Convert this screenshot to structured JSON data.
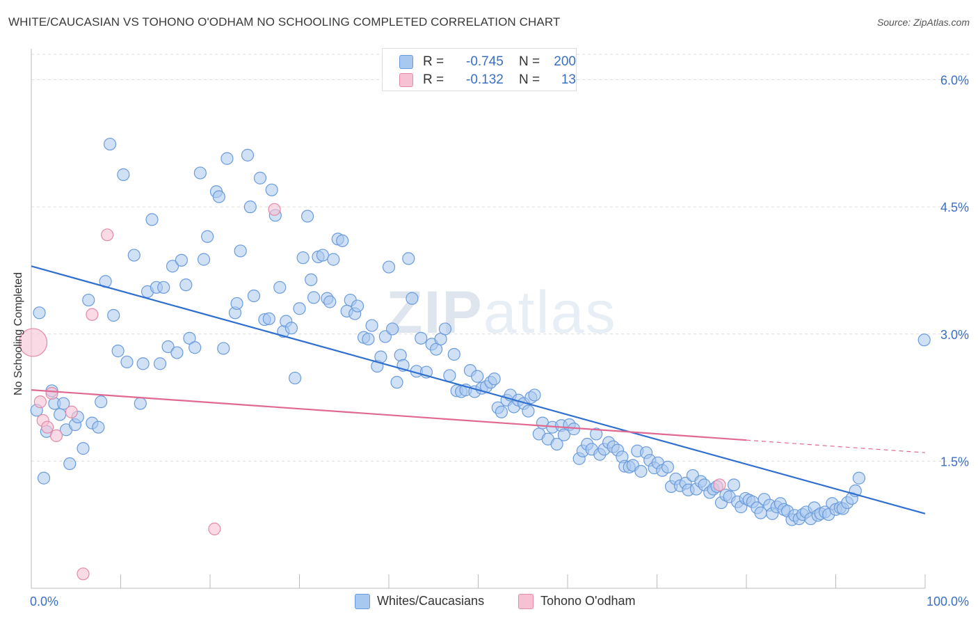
{
  "header": {
    "title": "WHITE/CAUCASIAN VS TOHONO O'ODHAM NO SCHOOLING COMPLETED CORRELATION CHART",
    "source": "Source: ZipAtlas.com"
  },
  "watermark": {
    "zip": "ZIP",
    "atlas": "atlas"
  },
  "colors": {
    "blue_fill": "#a9c8ef",
    "blue_stroke": "#6a9bdc",
    "blue_line": "#2f6fcf",
    "pink_fill": "#f6c1d2",
    "pink_stroke": "#e28aa7",
    "pink_line": "#e06891",
    "grid": "#dedede",
    "axis_text": "#3a6fc4"
  },
  "legend": {
    "rows": [
      {
        "r_label": "R =",
        "r_value": "-0.745",
        "n_label": "N =",
        "n_value": "200"
      },
      {
        "r_label": "R =",
        "r_value": "-0.132",
        "n_label": "N =",
        "n_value": "13"
      }
    ],
    "bottom": [
      "Whites/Caucasians",
      "Tohono O'odham"
    ]
  },
  "chart_data": {
    "type": "scatter",
    "ylabel": "No Schooling Completed",
    "x_tick_labels": [
      "0.0%",
      "100.0%"
    ],
    "y_tick_labels": [
      "1.5%",
      "3.0%",
      "4.5%",
      "6.0%"
    ],
    "xlim": [
      0,
      100
    ],
    "ylim": [
      0,
      6.3
    ],
    "y_ticks": [
      1.5,
      3.0,
      4.5,
      6.0
    ],
    "grid": true,
    "series": [
      {
        "name": "Whites/Caucasians",
        "color": "#a9c8ef",
        "trend": {
          "x0": 0,
          "y0": 3.8,
          "x1": 100,
          "y1": 0.88,
          "dashed_from": null
        },
        "points": [
          [
            0.6,
            2.1
          ],
          [
            0.9,
            3.25
          ],
          [
            1.4,
            1.3
          ],
          [
            1.7,
            1.85
          ],
          [
            2.3,
            2.33
          ],
          [
            2.6,
            2.18
          ],
          [
            3.2,
            2.05
          ],
          [
            3.6,
            2.18
          ],
          [
            3.9,
            1.87
          ],
          [
            4.3,
            1.47
          ],
          [
            4.9,
            1.93
          ],
          [
            5.2,
            2.02
          ],
          [
            5.8,
            1.65
          ],
          [
            6.4,
            3.4
          ],
          [
            6.8,
            1.95
          ],
          [
            7.5,
            1.9
          ],
          [
            7.8,
            2.2
          ],
          [
            8.3,
            3.62
          ],
          [
            8.8,
            5.24
          ],
          [
            9.2,
            3.22
          ],
          [
            9.7,
            2.8
          ],
          [
            10.3,
            4.88
          ],
          [
            10.7,
            2.67
          ],
          [
            11.5,
            3.93
          ],
          [
            12.2,
            2.18
          ],
          [
            12.5,
            2.65
          ],
          [
            13.0,
            3.5
          ],
          [
            13.5,
            4.35
          ],
          [
            14.0,
            3.55
          ],
          [
            14.4,
            2.65
          ],
          [
            14.8,
            3.55
          ],
          [
            15.3,
            2.85
          ],
          [
            15.8,
            3.8
          ],
          [
            16.3,
            2.78
          ],
          [
            16.8,
            3.87
          ],
          [
            17.3,
            3.58
          ],
          [
            17.7,
            2.95
          ],
          [
            18.3,
            2.84
          ],
          [
            18.9,
            4.9
          ],
          [
            19.3,
            3.88
          ],
          [
            19.7,
            4.15
          ],
          [
            20.7,
            4.68
          ],
          [
            21.0,
            4.62
          ],
          [
            21.5,
            2.83
          ],
          [
            21.9,
            5.07
          ],
          [
            22.8,
            3.25
          ],
          [
            23.0,
            3.36
          ],
          [
            23.4,
            3.98
          ],
          [
            24.2,
            5.11
          ],
          [
            24.5,
            4.5
          ],
          [
            24.9,
            3.45
          ],
          [
            25.6,
            4.84
          ],
          [
            26.1,
            3.17
          ],
          [
            26.6,
            3.18
          ],
          [
            26.9,
            4.7
          ],
          [
            27.3,
            4.4
          ],
          [
            27.8,
            3.55
          ],
          [
            28.2,
            3.03
          ],
          [
            28.5,
            3.15
          ],
          [
            29.1,
            3.07
          ],
          [
            29.5,
            2.48
          ],
          [
            30.0,
            3.3
          ],
          [
            30.4,
            3.9
          ],
          [
            30.9,
            4.39
          ],
          [
            31.3,
            3.64
          ],
          [
            31.6,
            3.43
          ],
          [
            32.1,
            3.91
          ],
          [
            32.6,
            3.93
          ],
          [
            33.1,
            3.42
          ],
          [
            33.4,
            3.38
          ],
          [
            33.8,
            3.88
          ],
          [
            34.3,
            4.12
          ],
          [
            34.8,
            4.1
          ],
          [
            35.3,
            3.27
          ],
          [
            35.7,
            3.4
          ],
          [
            36.2,
            3.24
          ],
          [
            36.5,
            3.33
          ],
          [
            37.2,
            2.96
          ],
          [
            37.7,
            2.94
          ],
          [
            38.1,
            3.1
          ],
          [
            38.7,
            2.62
          ],
          [
            39.1,
            2.73
          ],
          [
            39.6,
            2.97
          ],
          [
            40.0,
            3.79
          ],
          [
            40.4,
            3.06
          ],
          [
            40.9,
            2.43
          ],
          [
            41.3,
            2.75
          ],
          [
            41.6,
            2.63
          ],
          [
            42.2,
            3.89
          ],
          [
            42.6,
            3.42
          ],
          [
            43.1,
            2.56
          ],
          [
            43.6,
            2.95
          ],
          [
            44.2,
            2.55
          ],
          [
            44.8,
            2.88
          ],
          [
            45.3,
            2.82
          ],
          [
            45.8,
            2.94
          ],
          [
            46.3,
            3.06
          ],
          [
            46.8,
            2.51
          ],
          [
            47.3,
            2.76
          ],
          [
            47.6,
            2.33
          ],
          [
            48.1,
            2.32
          ],
          [
            48.6,
            2.34
          ],
          [
            49.1,
            2.57
          ],
          [
            49.6,
            2.32
          ],
          [
            49.9,
            2.5
          ],
          [
            50.4,
            2.36
          ],
          [
            50.9,
            2.38
          ],
          [
            51.4,
            2.43
          ],
          [
            51.8,
            2.47
          ],
          [
            52.2,
            2.13
          ],
          [
            52.6,
            2.08
          ],
          [
            53.2,
            2.22
          ],
          [
            53.6,
            2.28
          ],
          [
            54.0,
            2.14
          ],
          [
            54.5,
            2.22
          ],
          [
            55.1,
            2.18
          ],
          [
            55.6,
            2.09
          ],
          [
            55.9,
            2.25
          ],
          [
            56.3,
            2.28
          ],
          [
            56.8,
            1.82
          ],
          [
            57.2,
            1.95
          ],
          [
            57.8,
            1.76
          ],
          [
            58.3,
            1.9
          ],
          [
            58.8,
            1.7
          ],
          [
            59.3,
            1.92
          ],
          [
            59.6,
            1.81
          ],
          [
            60.2,
            1.93
          ],
          [
            60.7,
            1.88
          ],
          [
            61.3,
            1.53
          ],
          [
            61.7,
            1.62
          ],
          [
            62.2,
            1.7
          ],
          [
            62.7,
            1.64
          ],
          [
            63.2,
            1.82
          ],
          [
            63.6,
            1.58
          ],
          [
            64.1,
            1.64
          ],
          [
            64.6,
            1.72
          ],
          [
            65.1,
            1.67
          ],
          [
            65.6,
            1.63
          ],
          [
            66.1,
            1.55
          ],
          [
            66.4,
            1.44
          ],
          [
            66.9,
            1.43
          ],
          [
            67.3,
            1.45
          ],
          [
            67.8,
            1.62
          ],
          [
            68.2,
            1.38
          ],
          [
            68.8,
            1.6
          ],
          [
            69.2,
            1.51
          ],
          [
            69.7,
            1.42
          ],
          [
            70.1,
            1.48
          ],
          [
            70.6,
            1.39
          ],
          [
            71.2,
            1.43
          ],
          [
            71.6,
            1.2
          ],
          [
            72.1,
            1.29
          ],
          [
            72.6,
            1.21
          ],
          [
            73.2,
            1.24
          ],
          [
            73.5,
            1.16
          ],
          [
            74.0,
            1.33
          ],
          [
            74.4,
            1.17
          ],
          [
            74.9,
            1.26
          ],
          [
            75.3,
            1.22
          ],
          [
            75.9,
            1.13
          ],
          [
            76.3,
            1.17
          ],
          [
            76.7,
            1.2
          ],
          [
            77.2,
            1.01
          ],
          [
            77.7,
            1.1
          ],
          [
            78.1,
            1.08
          ],
          [
            78.6,
            1.22
          ],
          [
            79.0,
            1.02
          ],
          [
            79.4,
            0.96
          ],
          [
            79.9,
            1.06
          ],
          [
            80.3,
            1.04
          ],
          [
            80.7,
            1.02
          ],
          [
            81.2,
            0.95
          ],
          [
            81.6,
            0.89
          ],
          [
            82.0,
            1.05
          ],
          [
            82.6,
            0.98
          ],
          [
            82.9,
            0.88
          ],
          [
            83.4,
            0.96
          ],
          [
            83.8,
            1.0
          ],
          [
            84.2,
            0.93
          ],
          [
            84.6,
            0.91
          ],
          [
            85.1,
            0.81
          ],
          [
            85.4,
            0.86
          ],
          [
            85.9,
            0.82
          ],
          [
            86.3,
            0.87
          ],
          [
            86.7,
            0.9
          ],
          [
            87.2,
            0.82
          ],
          [
            87.6,
            0.95
          ],
          [
            88.0,
            0.86
          ],
          [
            88.3,
            0.88
          ],
          [
            88.8,
            0.9
          ],
          [
            89.2,
            0.87
          ],
          [
            89.6,
            1.0
          ],
          [
            90.0,
            0.93
          ],
          [
            90.5,
            0.95
          ],
          [
            90.8,
            0.94
          ],
          [
            91.3,
            1.01
          ],
          [
            91.8,
            1.06
          ],
          [
            92.2,
            1.15
          ],
          [
            92.6,
            1.3
          ],
          [
            99.9,
            2.93
          ]
        ]
      },
      {
        "name": "Tohono O'odham",
        "color": "#f6c1d2",
        "trend": {
          "x0": 0,
          "y0": 2.34,
          "x1": 100,
          "y1": 1.6,
          "dashed_from": 80
        },
        "points": [
          [
            0.2,
            2.9
          ],
          [
            1.0,
            2.2
          ],
          [
            1.3,
            1.98
          ],
          [
            1.8,
            1.9
          ],
          [
            2.3,
            2.3
          ],
          [
            2.8,
            1.8
          ],
          [
            4.5,
            2.08
          ],
          [
            6.8,
            3.23
          ],
          [
            8.5,
            4.17
          ],
          [
            20.5,
            0.7
          ],
          [
            27.2,
            4.47
          ],
          [
            5.8,
            0.17
          ],
          [
            77.0,
            1.22
          ]
        ]
      }
    ]
  }
}
